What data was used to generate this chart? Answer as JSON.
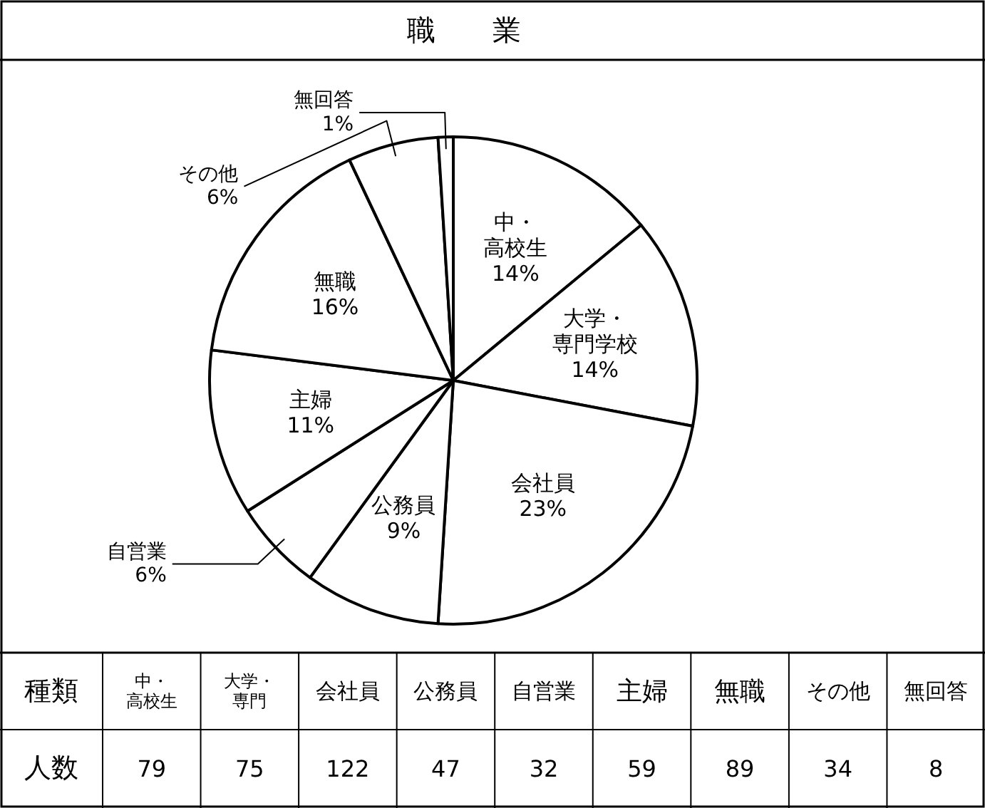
{
  "chart_data": [
    {
      "type": "pie",
      "title": "職業",
      "categories": [
        "中・高校生",
        "大学・専門学校",
        "会社員",
        "公務員",
        "自営業",
        "主婦",
        "無職",
        "その他",
        "無回答"
      ],
      "values": [
        14,
        14,
        23,
        9,
        6,
        11,
        16,
        6,
        1
      ],
      "value_labels": [
        "14%",
        "14%",
        "23%",
        "9%",
        "6%",
        "11%",
        "16%",
        "6%",
        "1%"
      ],
      "colors": [
        "#ffffff",
        "#ffffff",
        "#ffffff",
        "#ffffff",
        "#ffffff",
        "#ffffff",
        "#ffffff",
        "#ffffff",
        "#ffffff"
      ]
    },
    {
      "type": "other",
      "categories": [
        "中・高校生",
        "大学・専門",
        "会社員",
        "公務員",
        "自営業",
        "主婦",
        "無職",
        "その他",
        "無回答"
      ],
      "values": [
        79,
        75,
        122,
        47,
        32,
        59,
        89,
        34,
        8
      ],
      "data_labels": true,
      "annotations": [
        "種類",
        "人数"
      ]
    }
  ]
}
